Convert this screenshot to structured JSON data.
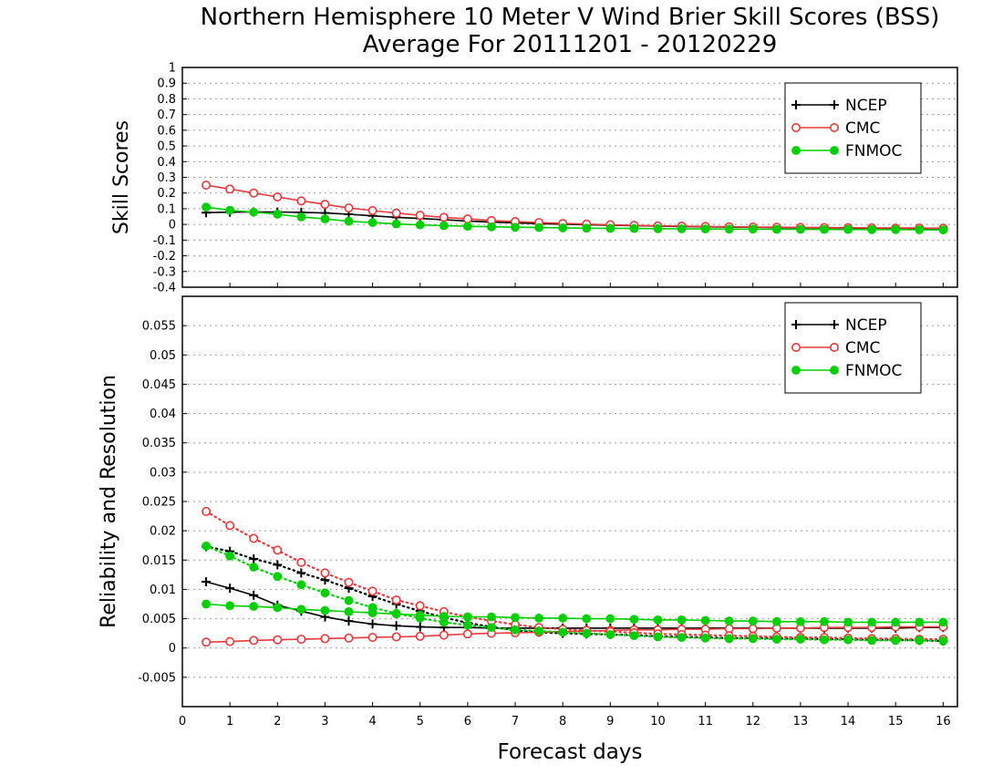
{
  "title_line1": "Northern Hemisphere 10 Meter V Wind Brier Skill Scores (BSS)",
  "title_line2": "Average For 20111201 - 20120229",
  "xlabel": "Forecast days",
  "legend": [
    "NCEP",
    "CMC",
    "FNMOC"
  ],
  "colors": {
    "NCEP": "#000000",
    "CMC": "#e83a3a",
    "FNMOC": "#00d000",
    "grid": "#9a9a9a"
  },
  "chart_data": [
    {
      "type": "line",
      "ylabel": "Skill Scores",
      "xlim": [
        0,
        16.3
      ],
      "ylim": [
        -0.4,
        1
      ],
      "x_ticks": [
        "0",
        "1",
        "2",
        "3",
        "4",
        "5",
        "6",
        "7",
        "8",
        "9",
        "10",
        "11",
        "12",
        "13",
        "14",
        "15",
        "16"
      ],
      "y_ticks": [
        "-0.4",
        "-0.3",
        "-0.2",
        "-0.1",
        "0",
        "0.1",
        "0.2",
        "0.3",
        "0.4",
        "0.5",
        "0.6",
        "0.7",
        "0.8",
        "0.9",
        "1"
      ],
      "grid": true,
      "legend_position": "top-right",
      "x": [
        0.5,
        1,
        1.5,
        2,
        2.5,
        3,
        3.5,
        4,
        4.5,
        5,
        5.5,
        6,
        6.5,
        7,
        7.5,
        8,
        8.5,
        9,
        9.5,
        10,
        10.5,
        11,
        11.5,
        12,
        12.5,
        13,
        13.5,
        14,
        14.5,
        15,
        15.5,
        16
      ],
      "series": [
        {
          "name": "NCEP",
          "marker": "plus",
          "style": "solid",
          "values": [
            0.075,
            0.078,
            0.079,
            0.079,
            0.077,
            0.073,
            0.065,
            0.055,
            0.045,
            0.038,
            0.03,
            0.022,
            0.015,
            0.01,
            0.005,
            0.002,
            -0.002,
            -0.005,
            -0.008,
            -0.01,
            -0.013,
            -0.015,
            -0.017,
            -0.018,
            -0.02,
            -0.021,
            -0.022,
            -0.023,
            -0.025,
            -0.026,
            -0.027,
            -0.028
          ]
        },
        {
          "name": "CMC",
          "marker": "open-circle",
          "style": "solid",
          "values": [
            0.25,
            0.225,
            0.2,
            0.175,
            0.15,
            0.128,
            0.105,
            0.088,
            0.072,
            0.058,
            0.045,
            0.035,
            0.025,
            0.018,
            0.012,
            0.006,
            0.002,
            -0.002,
            -0.006,
            -0.009,
            -0.011,
            -0.013,
            -0.015,
            -0.017,
            -0.018,
            -0.019,
            -0.02,
            -0.021,
            -0.022,
            -0.023,
            -0.023,
            -0.024
          ]
        },
        {
          "name": "FNMOC",
          "marker": "filled-circle",
          "style": "solid",
          "values": [
            0.11,
            0.09,
            0.078,
            0.065,
            0.048,
            0.035,
            0.02,
            0.012,
            0.003,
            -0.003,
            -0.008,
            -0.012,
            -0.015,
            -0.018,
            -0.02,
            -0.022,
            -0.024,
            -0.025,
            -0.026,
            -0.027,
            -0.028,
            -0.029,
            -0.03,
            -0.03,
            -0.031,
            -0.031,
            -0.032,
            -0.032,
            -0.033,
            -0.033,
            -0.034,
            -0.035
          ]
        }
      ]
    },
    {
      "type": "line",
      "ylabel": "Reliability and Resolution",
      "xlim": [
        0,
        16.3
      ],
      "ylim": [
        -0.01,
        0.06
      ],
      "x_ticks": [
        "0",
        "1",
        "2",
        "3",
        "4",
        "5",
        "6",
        "7",
        "8",
        "9",
        "10",
        "11",
        "12",
        "13",
        "14",
        "15",
        "16"
      ],
      "y_ticks": [
        "-0.005",
        "0",
        "0.005",
        "0.01",
        "0.015",
        "0.02",
        "0.025",
        "0.03",
        "0.035",
        "0.04",
        "0.045",
        "0.05",
        "0.055"
      ],
      "grid": true,
      "legend_position": "top-right",
      "x": [
        0.5,
        1,
        1.5,
        2,
        2.5,
        3,
        3.5,
        4,
        4.5,
        5,
        5.5,
        6,
        6.5,
        7,
        7.5,
        8,
        8.5,
        9,
        9.5,
        10,
        10.5,
        11,
        11.5,
        12,
        12.5,
        13,
        13.5,
        14,
        14.5,
        15,
        15.5,
        16
      ],
      "series": [
        {
          "name": "NCEP",
          "marker": "plus",
          "style": "solid",
          "values": [
            0.0113,
            0.0102,
            0.009,
            0.0073,
            0.0063,
            0.0053,
            0.0046,
            0.0041,
            0.0038,
            0.0036,
            0.0035,
            0.0035,
            0.0034,
            0.0034,
            0.0034,
            0.0034,
            0.0034,
            0.0034,
            0.0034,
            0.0034,
            0.0034,
            0.0034,
            0.0034,
            0.0034,
            0.0034,
            0.0034,
            0.0034,
            0.0034,
            0.0034,
            0.0034,
            0.0035,
            0.0035
          ]
        },
        {
          "name": "NCEP",
          "marker": "plus",
          "style": "dotted",
          "values": [
            0.0173,
            0.0165,
            0.0152,
            0.0142,
            0.0128,
            0.0116,
            0.0102,
            0.0088,
            0.0075,
            0.0063,
            0.0052,
            0.0043,
            0.0036,
            0.003,
            0.0027,
            0.0025,
            0.0024,
            0.0023,
            0.0022,
            0.002,
            0.0019,
            0.0018,
            0.0017,
            0.0017,
            0.0016,
            0.0016,
            0.0015,
            0.0015,
            0.0014,
            0.0014,
            0.0013,
            0.0012
          ]
        },
        {
          "name": "CMC",
          "marker": "open-circle",
          "style": "solid",
          "values": [
            0.001,
            0.0011,
            0.0013,
            0.0014,
            0.0015,
            0.0016,
            0.0017,
            0.0018,
            0.0019,
            0.002,
            0.0022,
            0.0024,
            0.0025,
            0.0026,
            0.0027,
            0.0028,
            0.0029,
            0.003,
            0.0031,
            0.0031,
            0.0032,
            0.0032,
            0.0033,
            0.0033,
            0.0034,
            0.0034,
            0.0035,
            0.0035,
            0.0035,
            0.0036,
            0.0036,
            0.0036
          ]
        },
        {
          "name": "CMC",
          "marker": "open-circle",
          "style": "dotted",
          "values": [
            0.0233,
            0.0209,
            0.0187,
            0.0167,
            0.0146,
            0.0128,
            0.0112,
            0.0097,
            0.0082,
            0.0072,
            0.0062,
            0.0053,
            0.0046,
            0.004,
            0.0035,
            0.0032,
            0.003,
            0.0028,
            0.0026,
            0.0024,
            0.0023,
            0.0022,
            0.0021,
            0.002,
            0.0019,
            0.0018,
            0.0018,
            0.0017,
            0.0016,
            0.0016,
            0.0015,
            0.0015
          ]
        },
        {
          "name": "FNMOC",
          "marker": "filled-circle",
          "style": "solid",
          "values": [
            0.0075,
            0.0072,
            0.0071,
            0.0069,
            0.0066,
            0.0064,
            0.0062,
            0.006,
            0.0058,
            0.0056,
            0.0054,
            0.0053,
            0.0053,
            0.0052,
            0.0051,
            0.0051,
            0.005,
            0.005,
            0.0049,
            0.0048,
            0.0048,
            0.0047,
            0.0046,
            0.0046,
            0.0045,
            0.0045,
            0.0045,
            0.0044,
            0.0044,
            0.0044,
            0.0044,
            0.0044
          ]
        },
        {
          "name": "FNMOC",
          "marker": "filled-circle",
          "style": "dotted",
          "values": [
            0.0174,
            0.0157,
            0.0138,
            0.0122,
            0.0108,
            0.0094,
            0.0081,
            0.0069,
            0.0059,
            0.0051,
            0.0044,
            0.0039,
            0.0035,
            0.0031,
            0.0029,
            0.0027,
            0.0025,
            0.0023,
            0.0021,
            0.0019,
            0.0018,
            0.0017,
            0.0016,
            0.0016,
            0.0015,
            0.0015,
            0.0014,
            0.0014,
            0.0013,
            0.0013,
            0.0013,
            0.0012
          ]
        }
      ]
    }
  ]
}
